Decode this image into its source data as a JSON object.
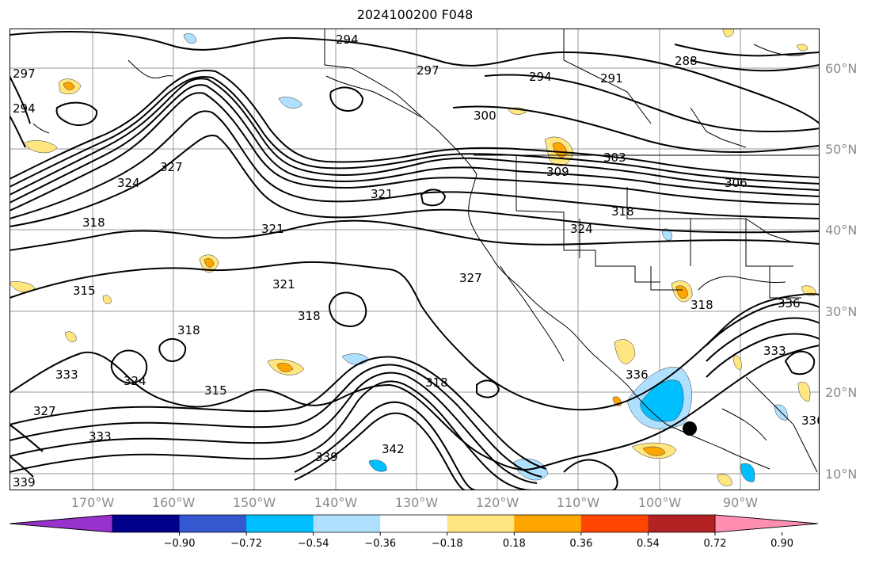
{
  "title": "2024100200 F048",
  "map": {
    "lat_labels": [
      "60°N",
      "50°N",
      "40°N",
      "30°N",
      "20°N",
      "10°N"
    ],
    "lon_labels": [
      "170°W",
      "160°W",
      "150°W",
      "140°W",
      "130°W",
      "120°W",
      "110°W",
      "100°W",
      "90°W"
    ],
    "contour_labels": [
      "294",
      "297",
      "300",
      "303",
      "309",
      "306",
      "318",
      "324",
      "327",
      "321",
      "318",
      "315",
      "321",
      "318",
      "324",
      "327",
      "321",
      "318",
      "315",
      "318",
      "324",
      "333",
      "327",
      "336",
      "339",
      "342",
      "318",
      "336",
      "336",
      "333",
      "288",
      "291",
      "294",
      "297",
      "294",
      "339",
      "333"
    ],
    "marker": "storm-center-dot"
  },
  "colorbar": {
    "ticks": [
      "−0.90",
      "−0.72",
      "−0.54",
      "−0.36",
      "−0.18",
      "0.18",
      "0.36",
      "0.54",
      "0.72",
      "0.90"
    ],
    "colors": [
      "#9932cc",
      "#00008b",
      "#3458d0",
      "#00bfff",
      "#b0e0ff",
      "#ffffff",
      "#ffe680",
      "#ffa500",
      "#ff4500",
      "#b22222",
      "#ff8fb0"
    ]
  }
}
